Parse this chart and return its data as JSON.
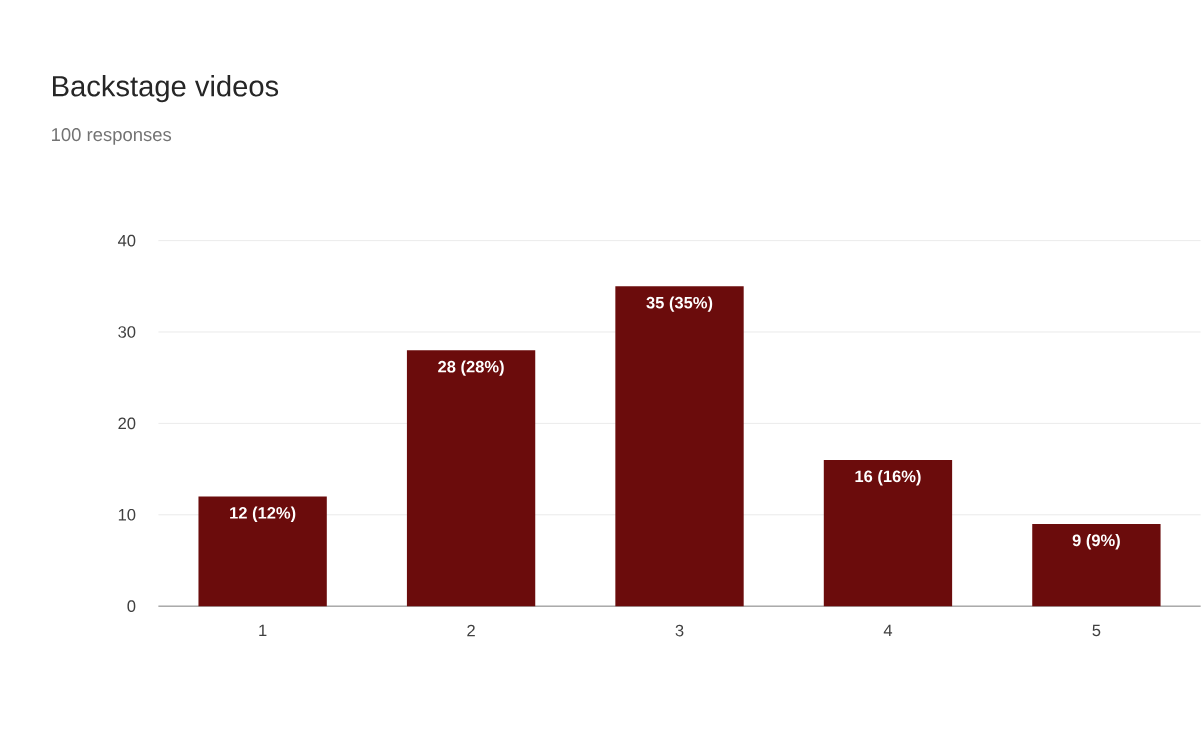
{
  "chart_data": {
    "type": "bar",
    "title": "Backstage videos",
    "subtitle": "100 responses",
    "categories": [
      "1",
      "2",
      "3",
      "4",
      "5"
    ],
    "values": [
      12,
      28,
      35,
      16,
      9
    ],
    "value_labels": [
      "12 (12%)",
      "28 (28%)",
      "35 (35%)",
      "16 (16%)",
      "9 (9%)"
    ],
    "color": "#6b0c0c",
    "ylim": [
      0,
      40
    ],
    "yticks": [
      0,
      10,
      20,
      30,
      40
    ],
    "grid": "y"
  }
}
